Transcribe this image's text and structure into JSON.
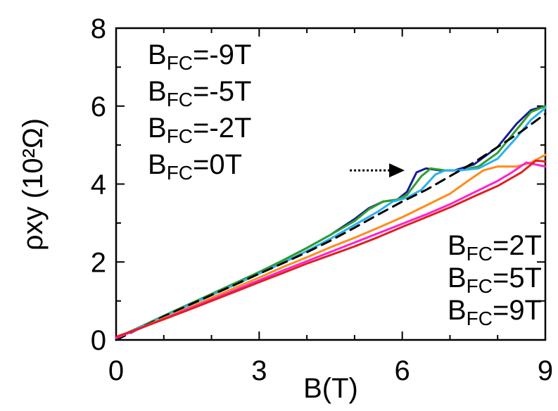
{
  "chart_data": {
    "type": "line",
    "xlabel": "B(T)",
    "ylabel": "ρxy (10²Ω)",
    "xlim": [
      0,
      9
    ],
    "ylim": [
      0,
      8
    ],
    "xticks": [
      0,
      3,
      6,
      9
    ],
    "yticks": [
      0,
      2,
      4,
      6,
      8
    ],
    "grid": false,
    "legend_groups": [
      {
        "position": "top-left",
        "entries": [
          {
            "symbol": "B",
            "sub": "FC",
            "value": "=-9T"
          },
          {
            "symbol": "B",
            "sub": "FC",
            "value": "=-5T"
          },
          {
            "symbol": "B",
            "sub": "FC",
            "value": "=-2T"
          },
          {
            "symbol": "B",
            "sub": "FC",
            "value": "=0T"
          }
        ]
      },
      {
        "position": "bottom-right",
        "entries": [
          {
            "symbol": "B",
            "sub": "FC",
            "value": "=2T"
          },
          {
            "symbol": "B",
            "sub": "FC",
            "value": "=5T"
          },
          {
            "symbol": "B",
            "sub": "FC",
            "value": "=9T"
          }
        ]
      }
    ],
    "annotation": {
      "type": "arrow",
      "style": "dotted",
      "from": [
        4.9,
        4.35
      ],
      "to": [
        6.05,
        4.35
      ]
    },
    "series": [
      {
        "color": "#1a1a99",
        "dash": false,
        "points": [
          [
            0,
            0.05
          ],
          [
            0.5,
            0.33
          ],
          [
            1,
            0.62
          ],
          [
            1.5,
            0.9
          ],
          [
            2,
            1.18
          ],
          [
            2.5,
            1.46
          ],
          [
            3,
            1.74
          ],
          [
            3.5,
            2.04
          ],
          [
            4,
            2.36
          ],
          [
            4.5,
            2.7
          ],
          [
            5,
            3.1
          ],
          [
            5.3,
            3.38
          ],
          [
            5.6,
            3.55
          ],
          [
            5.9,
            3.6
          ],
          [
            6.1,
            3.8
          ],
          [
            6.3,
            4.3
          ],
          [
            6.5,
            4.4
          ],
          [
            6.8,
            4.35
          ],
          [
            7.1,
            4.35
          ],
          [
            7.5,
            4.5
          ],
          [
            8,
            4.95
          ],
          [
            8.4,
            5.55
          ],
          [
            8.7,
            5.9
          ],
          [
            9,
            6.0
          ]
        ]
      },
      {
        "color": "#2ca02c",
        "dash": false,
        "points": [
          [
            0,
            0.05
          ],
          [
            0.5,
            0.33
          ],
          [
            1,
            0.62
          ],
          [
            1.5,
            0.9
          ],
          [
            2,
            1.18
          ],
          [
            2.5,
            1.46
          ],
          [
            3,
            1.74
          ],
          [
            3.5,
            2.04
          ],
          [
            4,
            2.36
          ],
          [
            4.5,
            2.7
          ],
          [
            5,
            3.05
          ],
          [
            5.3,
            3.35
          ],
          [
            5.6,
            3.55
          ],
          [
            5.9,
            3.6
          ],
          [
            6.1,
            3.72
          ],
          [
            6.4,
            4.2
          ],
          [
            6.6,
            4.4
          ],
          [
            6.9,
            4.35
          ],
          [
            7.2,
            4.35
          ],
          [
            7.6,
            4.45
          ],
          [
            8,
            4.8
          ],
          [
            8.4,
            5.4
          ],
          [
            8.7,
            5.85
          ],
          [
            9,
            6.0
          ]
        ]
      },
      {
        "color": "#2ab0f0",
        "dash": false,
        "points": [
          [
            0,
            0.05
          ],
          [
            0.5,
            0.32
          ],
          [
            1,
            0.6
          ],
          [
            1.5,
            0.88
          ],
          [
            2,
            1.15
          ],
          [
            2.5,
            1.42
          ],
          [
            3,
            1.7
          ],
          [
            3.5,
            1.98
          ],
          [
            4,
            2.28
          ],
          [
            4.5,
            2.6
          ],
          [
            5,
            2.95
          ],
          [
            5.5,
            3.3
          ],
          [
            5.8,
            3.55
          ],
          [
            6.1,
            3.65
          ],
          [
            6.4,
            3.85
          ],
          [
            6.7,
            4.25
          ],
          [
            6.9,
            4.35
          ],
          [
            7.2,
            4.35
          ],
          [
            7.6,
            4.4
          ],
          [
            8,
            4.65
          ],
          [
            8.4,
            5.2
          ],
          [
            8.7,
            5.65
          ],
          [
            9,
            5.95
          ]
        ]
      },
      {
        "color": "#000000",
        "dash": true,
        "points": [
          [
            0,
            0.0
          ],
          [
            0.5,
            0.3
          ],
          [
            1,
            0.6
          ],
          [
            1.5,
            0.88
          ],
          [
            2,
            1.15
          ],
          [
            2.5,
            1.42
          ],
          [
            3,
            1.7
          ],
          [
            3.5,
            1.97
          ],
          [
            4,
            2.25
          ],
          [
            4.5,
            2.55
          ],
          [
            5,
            2.88
          ],
          [
            5.5,
            3.22
          ],
          [
            6,
            3.55
          ],
          [
            6.5,
            3.85
          ],
          [
            7,
            4.2
          ],
          [
            7.5,
            4.55
          ],
          [
            8,
            4.95
          ],
          [
            8.5,
            5.35
          ],
          [
            9,
            5.8
          ]
        ]
      },
      {
        "color": "#ff8c1a",
        "dash": false,
        "points": [
          [
            0,
            0.05
          ],
          [
            0.5,
            0.3
          ],
          [
            1,
            0.56
          ],
          [
            1.5,
            0.82
          ],
          [
            2,
            1.08
          ],
          [
            2.5,
            1.34
          ],
          [
            3,
            1.6
          ],
          [
            3.5,
            1.87
          ],
          [
            4,
            2.12
          ],
          [
            4.5,
            2.38
          ],
          [
            5,
            2.62
          ],
          [
            5.5,
            2.88
          ],
          [
            6,
            3.15
          ],
          [
            6.5,
            3.45
          ],
          [
            7,
            3.75
          ],
          [
            7.4,
            4.1
          ],
          [
            7.7,
            4.35
          ],
          [
            8,
            4.45
          ],
          [
            8.4,
            4.45
          ],
          [
            8.7,
            4.55
          ],
          [
            9,
            4.75
          ]
        ]
      },
      {
        "color": "#ff22cc",
        "dash": false,
        "points": [
          [
            0,
            0.05
          ],
          [
            0.5,
            0.29
          ],
          [
            1,
            0.54
          ],
          [
            1.5,
            0.79
          ],
          [
            2,
            1.03
          ],
          [
            2.5,
            1.28
          ],
          [
            3,
            1.53
          ],
          [
            3.5,
            1.78
          ],
          [
            4,
            2.02
          ],
          [
            4.5,
            2.26
          ],
          [
            5,
            2.5
          ],
          [
            5.5,
            2.74
          ],
          [
            6,
            2.98
          ],
          [
            6.5,
            3.22
          ],
          [
            7,
            3.48
          ],
          [
            7.5,
            3.78
          ],
          [
            8,
            4.08
          ],
          [
            8.3,
            4.3
          ],
          [
            8.6,
            4.55
          ],
          [
            8.8,
            4.5
          ],
          [
            9,
            4.45
          ]
        ]
      },
      {
        "color": "#e02020",
        "dash": false,
        "points": [
          [
            0,
            0.08
          ],
          [
            0.5,
            0.3
          ],
          [
            1,
            0.53
          ],
          [
            1.5,
            0.76
          ],
          [
            2,
            1.0
          ],
          [
            2.5,
            1.24
          ],
          [
            3,
            1.48
          ],
          [
            3.5,
            1.72
          ],
          [
            4,
            1.96
          ],
          [
            4.5,
            2.18
          ],
          [
            5,
            2.4
          ],
          [
            5.5,
            2.64
          ],
          [
            6,
            2.9
          ],
          [
            6.5,
            3.15
          ],
          [
            7,
            3.4
          ],
          [
            7.5,
            3.68
          ],
          [
            8,
            3.95
          ],
          [
            8.5,
            4.3
          ],
          [
            8.8,
            4.6
          ],
          [
            9,
            4.58
          ]
        ]
      }
    ]
  }
}
